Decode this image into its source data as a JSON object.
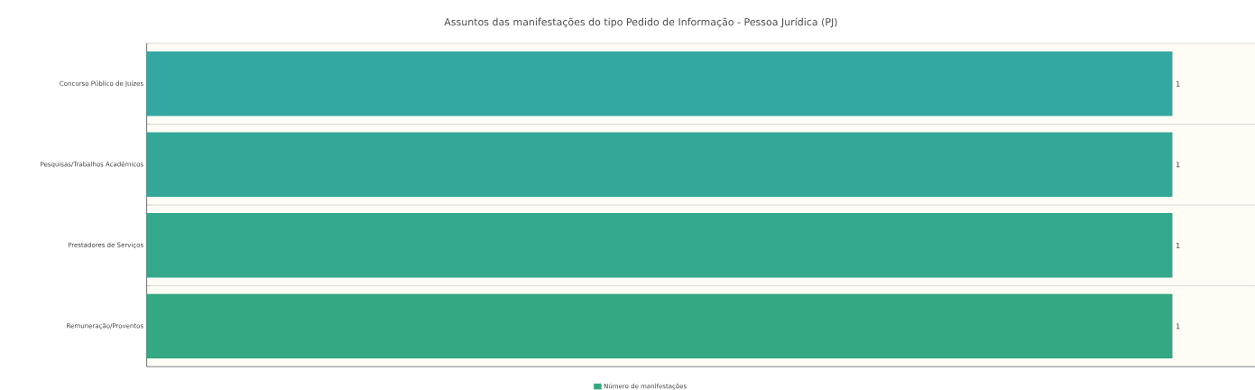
{
  "chart_data": {
    "type": "bar",
    "orientation": "horizontal",
    "title": "Assuntos das manifestações do tipo Pedido de Informação - Pessoa Jurídica (PJ)",
    "categories": [
      "Concurso Público de Juízes",
      "Pesquisas/Trabalhos Acadêmicos",
      "Prestadores de Serviços",
      "Remuneração/Proventos"
    ],
    "series": [
      {
        "name": "Número de manifestações",
        "values": [
          1,
          1,
          1,
          1
        ]
      }
    ],
    "colors": [
      "#33a8a2",
      "#33a899",
      "#33a88b",
      "#33a882"
    ],
    "data_labels": true,
    "grid": "y",
    "legend": "bottom",
    "tick_labels": "y"
  }
}
